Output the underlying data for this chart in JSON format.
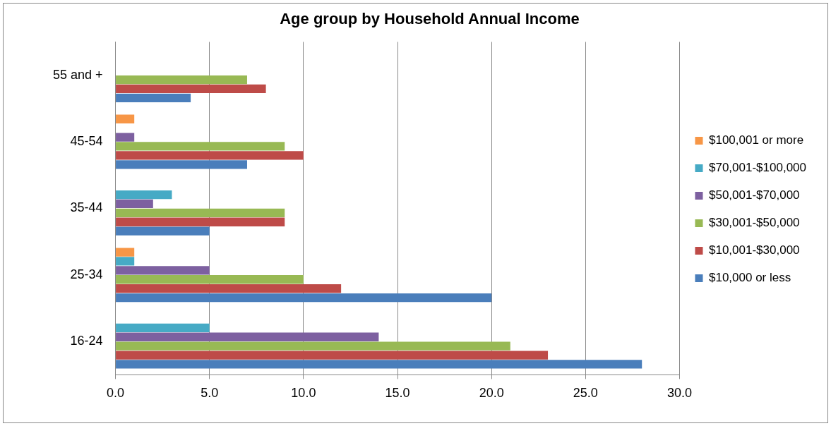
{
  "chart_data": {
    "type": "bar",
    "orientation": "horizontal",
    "title": "Age group by Household Annual Income",
    "categories": [
      "55 and +",
      "45-54",
      "35-44",
      "25-34",
      "16-24"
    ],
    "series": [
      {
        "name": "$100,001 or more",
        "color": "#f79646",
        "values": [
          0,
          1,
          0,
          1,
          0
        ]
      },
      {
        "name": "$70,001-$100,000",
        "color": "#46aac5",
        "values": [
          0,
          0,
          3,
          1,
          5
        ]
      },
      {
        "name": "$50,001-$70,000",
        "color": "#7d60a0",
        "values": [
          0,
          1,
          2,
          5,
          14
        ]
      },
      {
        "name": "$30,001-$50,000",
        "color": "#98b954",
        "values": [
          7,
          9,
          9,
          10,
          21
        ]
      },
      {
        "name": "$10,001-$30,000",
        "color": "#be4b48",
        "values": [
          8,
          10,
          9,
          12,
          23
        ]
      },
      {
        "name": "$10,000 or less",
        "color": "#4a7ebb",
        "values": [
          4,
          7,
          5,
          20,
          28
        ]
      }
    ],
    "xlim": [
      0,
      30
    ],
    "xticks": [
      {
        "value": 0,
        "label": "0.0"
      },
      {
        "value": 5,
        "label": "5.0"
      },
      {
        "value": 10,
        "label": "10.0"
      },
      {
        "value": 15,
        "label": "15.0"
      },
      {
        "value": 20,
        "label": "20.0"
      },
      {
        "value": 25,
        "label": "25.0"
      },
      {
        "value": 30,
        "label": "30.0"
      }
    ],
    "grid": "x",
    "legend": "right"
  }
}
